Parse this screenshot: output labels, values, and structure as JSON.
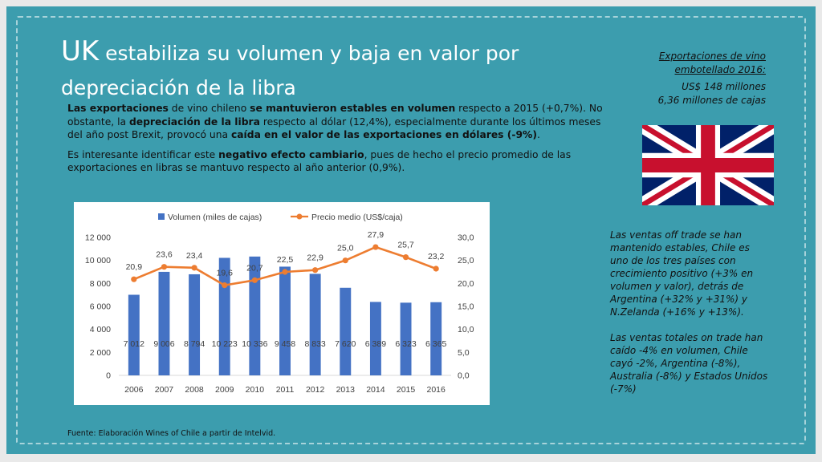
{
  "title": {
    "prefix": "UK",
    "rest": " estabiliza su volumen  y baja  en valor por depreciación de la libra"
  },
  "body": {
    "p1": [
      {
        "t": "Las exportaciones",
        "b": true
      },
      {
        "t": " de vino chileno ",
        "b": false
      },
      {
        "t": "se mantuvieron estables en volumen",
        "b": true
      },
      {
        "t": " respecto a 2015 (+0,7%). No obstante, la ",
        "b": false
      },
      {
        "t": "depreciación de la libra",
        "b": true
      },
      {
        "t": " respecto al dólar (12,4%), especialmente durante los últimos meses del año post Brexit, provocó una ",
        "b": false
      },
      {
        "t": "caída en el valor de las exportaciones en dólares (-9%)",
        "b": true
      },
      {
        "t": ".",
        "b": false
      }
    ],
    "p2": [
      {
        "t": "Es interesante identificar este ",
        "b": false
      },
      {
        "t": "negativo efecto cambiario",
        "b": true
      },
      {
        "t": ", pues de hecho el precio promedio de las exportaciones en libras se mantuvo respecto al año anterior (0,9%).",
        "b": false
      }
    ]
  },
  "side_top": {
    "heading_line1": "Exportaciones de vino",
    "heading_line2": "embotellado 2016:",
    "value1": "US$ 148 millones",
    "value2": "6,36 millones de cajas"
  },
  "side_bottom": {
    "p1": "Las ventas off trade se han mantenido estables, Chile es uno de los tres países con crecimiento positivo (+3% en volumen  y valor), detrás de Argentina (+32% y +31%) y N.Zelanda (+16% y +13%).",
    "p2": "Las ventas totales on trade han caído -4% en volumen, Chile cayó -2%,  Argentina (-8%), Australia (-8%) y Estados Unidos (-7%)"
  },
  "source": "Fuente: Elaboración Wines of Chile a partir de Intelvid.",
  "colors": {
    "slide_bg": "#3c9dae",
    "bar": "#4472c4",
    "line": "#ed7d31"
  },
  "flag_icon": "uk-flag",
  "chart_data": {
    "type": "bar+line",
    "categories": [
      "2006",
      "2007",
      "2008",
      "2009",
      "2010",
      "2011",
      "2012",
      "2013",
      "2014",
      "2015",
      "2016"
    ],
    "series": [
      {
        "name": "Volumen (miles de cajas)",
        "type": "bar",
        "axis": "left",
        "values": [
          7012,
          9006,
          8794,
          10223,
          10336,
          9458,
          8833,
          7620,
          6389,
          6323,
          6365
        ],
        "labels": [
          "7 012",
          "9 006",
          "8 794",
          "10 223",
          "10 336",
          "9 458",
          "8 833",
          "7 620",
          "6 389",
          "6 323",
          "6 365"
        ]
      },
      {
        "name": "Precio medio (US$/caja)",
        "type": "line",
        "axis": "right",
        "values": [
          20.9,
          23.6,
          23.4,
          19.6,
          20.7,
          22.5,
          22.9,
          25.0,
          27.9,
          25.7,
          23.2
        ],
        "labels": [
          "20,9",
          "23,6",
          "23,4",
          "19,6",
          "20,7",
          "22,5",
          "22,9",
          "25,0",
          "27,9",
          "25,7",
          "23,2"
        ]
      }
    ],
    "y_left": {
      "min": 0,
      "max": 12000,
      "ticks": [
        "0",
        "2 000",
        "4 000",
        "6 000",
        "8 000",
        "10 000",
        "12 000"
      ]
    },
    "y_right": {
      "min": 0,
      "max": 30,
      "ticks": [
        "0,0",
        "5,0",
        "10,0",
        "15,0",
        "20,0",
        "25,0",
        "30,0"
      ]
    },
    "grid": false,
    "legend": "top"
  }
}
